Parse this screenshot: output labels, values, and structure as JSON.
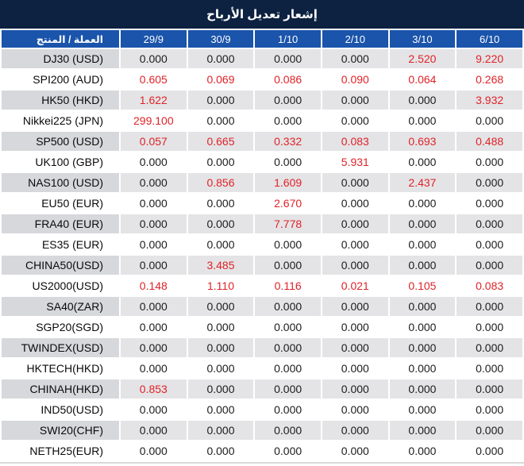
{
  "title": "إشعار تعديل الأرباح",
  "table": {
    "product_column_header": "العملة / المنتج",
    "date_columns": [
      "29/9",
      "30/9",
      "1/10",
      "2/10",
      "3/10",
      "6/10"
    ],
    "rows": [
      {
        "product": "DJ30 (USD)",
        "values": [
          "0.000",
          "0.000",
          "0.000",
          "0.000",
          "2.520",
          "9.220"
        ],
        "red": [
          false,
          false,
          false,
          false,
          true,
          true
        ]
      },
      {
        "product": "SPI200 (AUD)",
        "values": [
          "0.605",
          "0.069",
          "0.086",
          "0.090",
          "0.064",
          "0.268"
        ],
        "red": [
          true,
          true,
          true,
          true,
          true,
          true
        ]
      },
      {
        "product": "HK50 (HKD)",
        "values": [
          "1.622",
          "0.000",
          "0.000",
          "0.000",
          "0.000",
          "3.932"
        ],
        "red": [
          true,
          false,
          false,
          false,
          false,
          true
        ]
      },
      {
        "product": "Nikkei225 (JPN)",
        "values": [
          "299.100",
          "0.000",
          "0.000",
          "0.000",
          "0.000",
          "0.000"
        ],
        "red": [
          true,
          false,
          false,
          false,
          false,
          false
        ]
      },
      {
        "product": "SP500 (USD)",
        "values": [
          "0.057",
          "0.665",
          "0.332",
          "0.083",
          "0.693",
          "0.488"
        ],
        "red": [
          true,
          true,
          true,
          true,
          true,
          true
        ]
      },
      {
        "product": "UK100 (GBP)",
        "values": [
          "0.000",
          "0.000",
          "0.000",
          "5.931",
          "0.000",
          "0.000"
        ],
        "red": [
          false,
          false,
          false,
          true,
          false,
          false
        ]
      },
      {
        "product": "NAS100 (USD)",
        "values": [
          "0.000",
          "0.856",
          "1.609",
          "0.000",
          "2.437",
          "0.000"
        ],
        "red": [
          false,
          true,
          true,
          false,
          true,
          false
        ]
      },
      {
        "product": "EU50 (EUR)",
        "values": [
          "0.000",
          "0.000",
          "2.670",
          "0.000",
          "0.000",
          "0.000"
        ],
        "red": [
          false,
          false,
          true,
          false,
          false,
          false
        ]
      },
      {
        "product": "FRA40 (EUR)",
        "values": [
          "0.000",
          "0.000",
          "7.778",
          "0.000",
          "0.000",
          "0.000"
        ],
        "red": [
          false,
          false,
          true,
          false,
          false,
          false
        ]
      },
      {
        "product": "ES35 (EUR)",
        "values": [
          "0.000",
          "0.000",
          "0.000",
          "0.000",
          "0.000",
          "0.000"
        ],
        "red": [
          false,
          false,
          false,
          false,
          false,
          false
        ]
      },
      {
        "product": "CHINA50(USD)",
        "values": [
          "0.000",
          "3.485",
          "0.000",
          "0.000",
          "0.000",
          "0.000"
        ],
        "red": [
          false,
          true,
          false,
          false,
          false,
          false
        ]
      },
      {
        "product": "US2000(USD)",
        "values": [
          "0.148",
          "1.110",
          "0.116",
          "0.021",
          "0.105",
          "0.083"
        ],
        "red": [
          true,
          true,
          true,
          true,
          true,
          true
        ]
      },
      {
        "product": "SA40(ZAR)",
        "values": [
          "0.000",
          "0.000",
          "0.000",
          "0.000",
          "0.000",
          "0.000"
        ],
        "red": [
          false,
          false,
          false,
          false,
          false,
          false
        ]
      },
      {
        "product": "SGP20(SGD)",
        "values": [
          "0.000",
          "0.000",
          "0.000",
          "0.000",
          "0.000",
          "0.000"
        ],
        "red": [
          false,
          false,
          false,
          false,
          false,
          false
        ]
      },
      {
        "product": "TWINDEX(USD)",
        "values": [
          "0.000",
          "0.000",
          "0.000",
          "0.000",
          "0.000",
          "0.000"
        ],
        "red": [
          false,
          false,
          false,
          false,
          false,
          false
        ]
      },
      {
        "product": "HKTECH(HKD)",
        "values": [
          "0.000",
          "0.000",
          "0.000",
          "0.000",
          "0.000",
          "0.000"
        ],
        "red": [
          false,
          false,
          false,
          false,
          false,
          false
        ]
      },
      {
        "product": "CHINAH(HKD)",
        "values": [
          "0.853",
          "0.000",
          "0.000",
          "0.000",
          "0.000",
          "0.000"
        ],
        "red": [
          true,
          false,
          false,
          false,
          false,
          false
        ]
      },
      {
        "product": "IND50(USD)",
        "values": [
          "0.000",
          "0.000",
          "0.000",
          "0.000",
          "0.000",
          "0.000"
        ],
        "red": [
          false,
          false,
          false,
          false,
          false,
          false
        ]
      },
      {
        "product": "SWI20(CHF)",
        "values": [
          "0.000",
          "0.000",
          "0.000",
          "0.000",
          "0.000",
          "0.000"
        ],
        "red": [
          false,
          false,
          false,
          false,
          false,
          false
        ]
      },
      {
        "product": "NETH25(EUR)",
        "values": [
          "0.000",
          "0.000",
          "0.000",
          "0.000",
          "0.000",
          "0.000"
        ],
        "red": [
          false,
          false,
          false,
          false,
          false,
          false
        ]
      }
    ]
  },
  "colors": {
    "title_bg": "#0d2240",
    "header_bg": "#1a54ab",
    "header_text": "#ffffff",
    "row_gray": "#e4e4e6",
    "row_gray_label": "#d6d8db",
    "row_white": "#ffffff",
    "value_red": "#e02228",
    "value_dark": "#1c1c1c"
  }
}
